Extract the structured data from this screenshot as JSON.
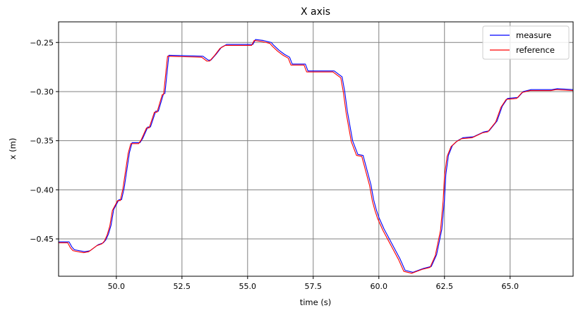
{
  "chart_data": {
    "type": "line",
    "title": "X axis",
    "xlabel": "time (s)",
    "ylabel": "x (m)",
    "xlim": [
      47.8,
      67.4
    ],
    "ylim": [
      -0.488,
      -0.229
    ],
    "xticks": [
      50.0,
      52.5,
      55.0,
      57.5,
      60.0,
      62.5,
      65.0
    ],
    "xtick_labels": [
      "50.0",
      "52.5",
      "55.0",
      "57.5",
      "60.0",
      "62.5",
      "65.0"
    ],
    "yticks": [
      -0.25,
      -0.3,
      -0.35,
      -0.4,
      -0.45
    ],
    "ytick_labels": [
      "−0.25",
      "−0.30",
      "−0.35",
      "−0.40",
      "−0.45"
    ],
    "grid": true,
    "legend_position": "upper right",
    "series": [
      {
        "name": "measure",
        "color": "#0000ff",
        "x": [
          47.8,
          48.2,
          48.3,
          48.4,
          48.6,
          48.8,
          49.0,
          49.2,
          49.3,
          49.5,
          49.6,
          49.7,
          49.8,
          49.9,
          50.1,
          50.2,
          50.3,
          50.5,
          50.6,
          50.9,
          51.0,
          51.2,
          51.3,
          51.5,
          51.6,
          51.8,
          51.85,
          52.0,
          53.3,
          53.5,
          53.6,
          53.8,
          54.0,
          54.2,
          55.2,
          55.3,
          55.6,
          55.9,
          56.0,
          56.2,
          56.4,
          56.6,
          56.7,
          57.2,
          57.3,
          58.3,
          58.6,
          58.7,
          58.8,
          58.9,
          59.0,
          59.2,
          59.4,
          59.7,
          59.8,
          59.9,
          60.0,
          60.2,
          60.4,
          60.6,
          60.8,
          61.0,
          61.3,
          61.5,
          61.7,
          62.0,
          62.2,
          62.4,
          62.5,
          62.55,
          62.65,
          62.8,
          63.0,
          63.2,
          63.6,
          64.0,
          64.2,
          64.5,
          64.7,
          64.9,
          65.3,
          65.5,
          65.8,
          66.6,
          66.8,
          67.4
        ],
        "y": [
          -0.453,
          -0.453,
          -0.458,
          -0.461,
          -0.462,
          -0.463,
          -0.462,
          -0.458,
          -0.456,
          -0.454,
          -0.451,
          -0.445,
          -0.436,
          -0.42,
          -0.41,
          -0.41,
          -0.398,
          -0.362,
          -0.352,
          -0.352,
          -0.348,
          -0.336,
          -0.336,
          -0.32,
          -0.32,
          -0.302,
          -0.302,
          -0.263,
          -0.264,
          -0.268,
          -0.268,
          -0.262,
          -0.255,
          -0.252,
          -0.252,
          -0.247,
          -0.248,
          -0.25,
          -0.253,
          -0.258,
          -0.262,
          -0.265,
          -0.272,
          -0.272,
          -0.279,
          -0.279,
          -0.285,
          -0.3,
          -0.32,
          -0.335,
          -0.35,
          -0.364,
          -0.365,
          -0.395,
          -0.41,
          -0.42,
          -0.428,
          -0.44,
          -0.45,
          -0.46,
          -0.47,
          -0.482,
          -0.484,
          -0.482,
          -0.48,
          -0.478,
          -0.466,
          -0.44,
          -0.41,
          -0.385,
          -0.365,
          -0.355,
          -0.35,
          -0.347,
          -0.346,
          -0.341,
          -0.34,
          -0.33,
          -0.315,
          -0.307,
          -0.306,
          -0.3,
          -0.298,
          -0.298,
          -0.297,
          -0.298
        ]
      },
      {
        "name": "reference",
        "color": "#ff0000",
        "x": [
          47.8,
          48.15,
          48.25,
          48.35,
          48.55,
          48.75,
          48.95,
          49.15,
          49.25,
          49.45,
          49.55,
          49.65,
          49.75,
          49.85,
          50.05,
          50.15,
          50.25,
          50.45,
          50.55,
          50.85,
          50.95,
          51.15,
          51.25,
          51.45,
          51.55,
          51.75,
          51.8,
          51.95,
          53.25,
          53.45,
          53.55,
          53.75,
          53.95,
          54.15,
          55.15,
          55.25,
          55.55,
          55.85,
          55.95,
          56.15,
          56.35,
          56.55,
          56.65,
          57.15,
          57.25,
          58.25,
          58.55,
          58.65,
          58.75,
          58.85,
          58.95,
          59.15,
          59.35,
          59.65,
          59.75,
          59.85,
          59.95,
          60.15,
          60.35,
          60.55,
          60.75,
          60.95,
          61.25,
          61.45,
          61.65,
          61.95,
          62.15,
          62.35,
          62.45,
          62.5,
          62.6,
          62.75,
          62.95,
          63.15,
          63.55,
          63.95,
          64.15,
          64.45,
          64.65,
          64.85,
          65.25,
          65.45,
          65.75,
          66.55,
          66.75,
          67.4
        ],
        "y": [
          -0.454,
          -0.454,
          -0.459,
          -0.462,
          -0.463,
          -0.464,
          -0.463,
          -0.459,
          -0.457,
          -0.455,
          -0.452,
          -0.446,
          -0.437,
          -0.421,
          -0.411,
          -0.411,
          -0.399,
          -0.363,
          -0.353,
          -0.353,
          -0.349,
          -0.337,
          -0.337,
          -0.321,
          -0.321,
          -0.303,
          -0.303,
          -0.264,
          -0.265,
          -0.269,
          -0.269,
          -0.263,
          -0.256,
          -0.253,
          -0.253,
          -0.248,
          -0.249,
          -0.251,
          -0.254,
          -0.259,
          -0.263,
          -0.266,
          -0.273,
          -0.273,
          -0.28,
          -0.28,
          -0.286,
          -0.301,
          -0.321,
          -0.336,
          -0.351,
          -0.365,
          -0.366,
          -0.396,
          -0.411,
          -0.421,
          -0.429,
          -0.441,
          -0.451,
          -0.461,
          -0.471,
          -0.483,
          -0.485,
          -0.483,
          -0.481,
          -0.479,
          -0.467,
          -0.441,
          -0.411,
          -0.386,
          -0.366,
          -0.356,
          -0.351,
          -0.348,
          -0.347,
          -0.342,
          -0.341,
          -0.331,
          -0.316,
          -0.308,
          -0.307,
          -0.301,
          -0.299,
          -0.299,
          -0.298,
          -0.299
        ]
      }
    ]
  }
}
